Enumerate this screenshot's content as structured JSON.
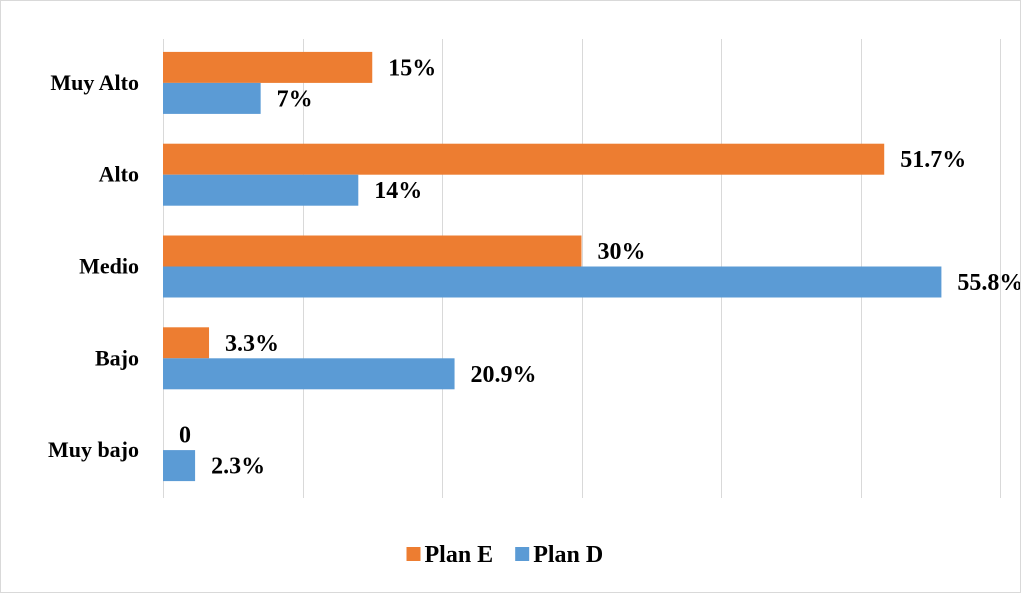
{
  "chart_data": {
    "type": "bar",
    "orientation": "horizontal",
    "categories": [
      "Muy Alto",
      "Alto",
      "Medio",
      "Bajo",
      "Muy bajo"
    ],
    "series": [
      {
        "name": "Plan E",
        "color": "#ed7d31",
        "values": [
          15,
          51.7,
          30,
          3.3,
          0
        ],
        "labels": [
          "15%",
          "51.7%",
          "30%",
          "3.3%",
          "0"
        ]
      },
      {
        "name": "Plan D",
        "color": "#5b9bd5",
        "values": [
          7,
          14,
          55.8,
          20.9,
          2.3
        ],
        "labels": [
          "7%",
          "14%",
          "55.8%",
          "20.9%",
          "2.3%"
        ]
      }
    ],
    "xlim": [
      0,
      60
    ],
    "grid": true,
    "legend_position": "bottom"
  }
}
